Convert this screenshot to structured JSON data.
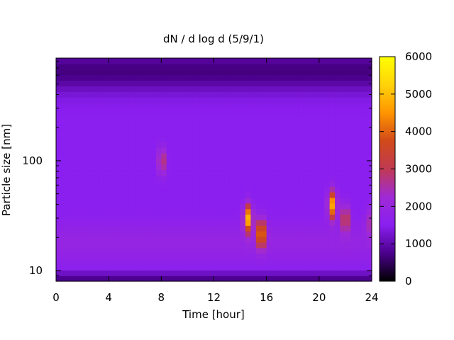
{
  "chart_data": {
    "type": "heatmap",
    "title": "dN / d log d (5/9/1)",
    "xlabel": "Time [hour]",
    "ylabel": "Particle size [nm]",
    "xlim": [
      0,
      24
    ],
    "ylim": [
      8,
      860
    ],
    "y_scale": "log",
    "x_ticks": [
      0,
      4,
      8,
      12,
      16,
      20,
      24
    ],
    "y_ticks": [
      10,
      100
    ],
    "colorbar": {
      "range": [
        0,
        6000
      ],
      "ticks": [
        0,
        1000,
        2000,
        3000,
        4000,
        5000,
        6000
      ],
      "palette": [
        "#000000",
        "#4b008c",
        "#8a1ff0",
        "#9f2ad6",
        "#c03a53",
        "#d14a1a",
        "#ff9400",
        "#ffd30a",
        "#ffff00"
      ]
    },
    "grid": false,
    "background_level": 1500,
    "features": [
      {
        "label": "burst 8h 100nm",
        "x": 8.05,
        "y_nm": 100,
        "value": 3000
      },
      {
        "label": "growth event 14.5h 30nm",
        "x": 14.6,
        "y_nm": 30,
        "value": 4800
      },
      {
        "label": "growth event 15.6h 22nm",
        "x": 15.6,
        "y_nm": 22,
        "value": 4500
      },
      {
        "label": "event 21h 40nm",
        "x": 21.0,
        "y_nm": 40,
        "value": 4700
      },
      {
        "label": "event 22h 30nm",
        "x": 22.0,
        "y_nm": 30,
        "value": 3300
      },
      {
        "label": "edge 24h 28nm",
        "x": 23.8,
        "y_nm": 28,
        "value": 2300
      }
    ]
  }
}
